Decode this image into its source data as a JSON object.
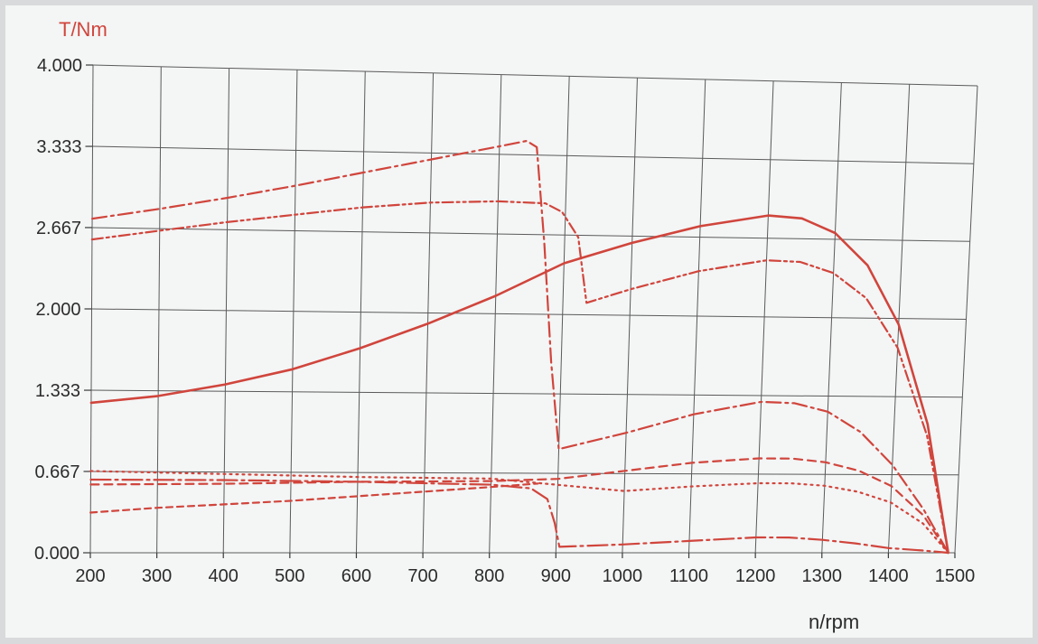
{
  "chart_data": {
    "type": "line",
    "title": "",
    "ylabel": "T/Nm",
    "xlabel": "n/rpm",
    "xlim": [
      200,
      1500
    ],
    "ylim": [
      0,
      4
    ],
    "x_ticks": [
      "200",
      "300",
      "400",
      "500",
      "600",
      "700",
      "800",
      "900",
      "1000",
      "1100",
      "1200",
      "1300",
      "1400",
      "1500"
    ],
    "y_ticks": [
      "0.000",
      "0.667",
      "1.333",
      "2.000",
      "2.667",
      "3.333",
      "4.000"
    ],
    "grid": true,
    "legend": "none",
    "line_color": "#d0453c",
    "label_color": "#d0453c",
    "series": [
      {
        "style": "solid",
        "points": [
          [
            200,
            1.23
          ],
          [
            300,
            1.29
          ],
          [
            400,
            1.39
          ],
          [
            500,
            1.52
          ],
          [
            600,
            1.7
          ],
          [
            700,
            1.91
          ],
          [
            800,
            2.15
          ],
          [
            900,
            2.43
          ],
          [
            1000,
            2.61
          ],
          [
            1100,
            2.76
          ],
          [
            1200,
            2.86
          ],
          [
            1250,
            2.84
          ],
          [
            1300,
            2.72
          ],
          [
            1350,
            2.45
          ],
          [
            1400,
            1.95
          ],
          [
            1450,
            1.1
          ],
          [
            1490,
            0.0
          ]
        ]
      },
      {
        "style": "dash-dot",
        "points": [
          [
            200,
            2.74
          ],
          [
            300,
            2.83
          ],
          [
            400,
            2.93
          ],
          [
            500,
            3.04
          ],
          [
            600,
            3.16
          ],
          [
            700,
            3.28
          ],
          [
            800,
            3.4
          ],
          [
            840,
            3.45
          ],
          [
            855,
            3.4
          ],
          [
            870,
            2.6
          ],
          [
            885,
            1.6
          ],
          [
            900,
            0.87
          ],
          [
            1000,
            1.01
          ],
          [
            1100,
            1.17
          ],
          [
            1200,
            1.28
          ],
          [
            1250,
            1.27
          ],
          [
            1300,
            1.2
          ],
          [
            1350,
            1.03
          ],
          [
            1400,
            0.75
          ],
          [
            1450,
            0.37
          ],
          [
            1490,
            0.0
          ]
        ]
      },
      {
        "style": "dash-dot-dot",
        "points": [
          [
            200,
            2.57
          ],
          [
            300,
            2.65
          ],
          [
            400,
            2.73
          ],
          [
            500,
            2.8
          ],
          [
            600,
            2.87
          ],
          [
            700,
            2.92
          ],
          [
            800,
            2.94
          ],
          [
            870,
            2.93
          ],
          [
            895,
            2.86
          ],
          [
            920,
            2.65
          ],
          [
            935,
            2.1
          ],
          [
            1000,
            2.22
          ],
          [
            1100,
            2.38
          ],
          [
            1200,
            2.48
          ],
          [
            1250,
            2.47
          ],
          [
            1300,
            2.38
          ],
          [
            1350,
            2.17
          ],
          [
            1400,
            1.75
          ],
          [
            1450,
            1.0
          ],
          [
            1490,
            0.0
          ]
        ]
      },
      {
        "style": "dash",
        "points": [
          [
            200,
            0.56
          ],
          [
            400,
            0.57
          ],
          [
            600,
            0.59
          ],
          [
            800,
            0.6
          ],
          [
            900,
            0.62
          ],
          [
            1000,
            0.69
          ],
          [
            1100,
            0.76
          ],
          [
            1200,
            0.8
          ],
          [
            1250,
            0.8
          ],
          [
            1300,
            0.77
          ],
          [
            1350,
            0.7
          ],
          [
            1400,
            0.57
          ],
          [
            1450,
            0.32
          ],
          [
            1490,
            0.0
          ]
        ]
      },
      {
        "style": "dotted",
        "points": [
          [
            200,
            0.67
          ],
          [
            400,
            0.65
          ],
          [
            600,
            0.63
          ],
          [
            800,
            0.62
          ],
          [
            900,
            0.57
          ],
          [
            1000,
            0.52
          ],
          [
            1100,
            0.56
          ],
          [
            1200,
            0.59
          ],
          [
            1250,
            0.59
          ],
          [
            1300,
            0.57
          ],
          [
            1350,
            0.52
          ],
          [
            1400,
            0.43
          ],
          [
            1450,
            0.25
          ],
          [
            1490,
            0.0
          ]
        ]
      },
      {
        "style": "long-dash-dot",
        "points": [
          [
            200,
            0.6
          ],
          [
            400,
            0.6
          ],
          [
            600,
            0.59
          ],
          [
            800,
            0.57
          ],
          [
            860,
            0.54
          ],
          [
            885,
            0.45
          ],
          [
            897,
            0.25
          ],
          [
            905,
            0.05
          ],
          [
            1000,
            0.07
          ],
          [
            1100,
            0.1
          ],
          [
            1200,
            0.13
          ],
          [
            1250,
            0.13
          ],
          [
            1300,
            0.11
          ],
          [
            1350,
            0.08
          ],
          [
            1400,
            0.04
          ],
          [
            1450,
            0.02
          ],
          [
            1490,
            0.0
          ]
        ]
      },
      {
        "style": "short-dash",
        "points": [
          [
            200,
            0.33
          ],
          [
            300,
            0.37
          ],
          [
            400,
            0.4
          ],
          [
            500,
            0.43
          ],
          [
            600,
            0.47
          ],
          [
            700,
            0.51
          ],
          [
            800,
            0.55
          ],
          [
            870,
            0.58
          ]
        ]
      }
    ]
  }
}
